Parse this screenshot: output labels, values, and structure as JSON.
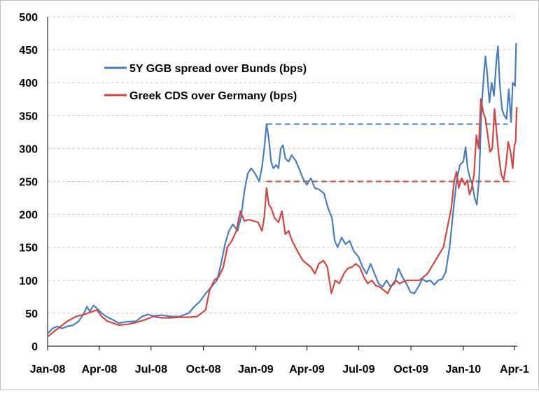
{
  "chart_data": {
    "type": "line",
    "title": "",
    "xlabel": "",
    "ylabel": "",
    "ylim": [
      0,
      500
    ],
    "yticks": [
      "0",
      "50",
      "100",
      "150",
      "200",
      "250",
      "300",
      "350",
      "400",
      "450",
      "500"
    ],
    "xticks": [
      "Jan-08",
      "Apr-08",
      "Jul-08",
      "Oct-08",
      "Jan-09",
      "Apr-09",
      "Jul-09",
      "Oct-09",
      "Jan-10",
      "Apr-1"
    ],
    "grid": "horizontal dashed",
    "legend_position": "top-left",
    "reference_lines": [
      {
        "series": "5Y GGB spread over Bunds (bps)",
        "value": 337,
        "from": "2009-01-20",
        "to": "2010-03-20",
        "style": "dashed",
        "color": "#4A7EBB"
      },
      {
        "series": "Greek CDS over Germany (bps)",
        "value": 250,
        "from": "2009-01-20",
        "to": "2010-03-28",
        "style": "dashed",
        "color": "#D04545"
      }
    ],
    "series": [
      {
        "name": "5Y GGB spread over Bunds (bps)",
        "color": "#4A7EBB",
        "points": [
          [
            "2008-01-02",
            20
          ],
          [
            "2008-01-10",
            27
          ],
          [
            "2008-01-18",
            30
          ],
          [
            "2008-01-26",
            27
          ],
          [
            "2008-02-05",
            30
          ],
          [
            "2008-02-15",
            32
          ],
          [
            "2008-02-25",
            38
          ],
          [
            "2008-03-05",
            50
          ],
          [
            "2008-03-10",
            60
          ],
          [
            "2008-03-15",
            53
          ],
          [
            "2008-03-22",
            62
          ],
          [
            "2008-03-28",
            57
          ],
          [
            "2008-04-05",
            50
          ],
          [
            "2008-04-15",
            44
          ],
          [
            "2008-04-25",
            40
          ],
          [
            "2008-05-05",
            35
          ],
          [
            "2008-05-20",
            37
          ],
          [
            "2008-06-05",
            38
          ],
          [
            "2008-06-15",
            45
          ],
          [
            "2008-06-25",
            48
          ],
          [
            "2008-07-05",
            46
          ],
          [
            "2008-07-20",
            47
          ],
          [
            "2008-08-05",
            45
          ],
          [
            "2008-08-20",
            45
          ],
          [
            "2008-09-05",
            50
          ],
          [
            "2008-09-15",
            60
          ],
          [
            "2008-09-25",
            68
          ],
          [
            "2008-10-05",
            80
          ],
          [
            "2008-10-15",
            90
          ],
          [
            "2008-10-25",
            100
          ],
          [
            "2008-11-01",
            125
          ],
          [
            "2008-11-08",
            155
          ],
          [
            "2008-11-15",
            175
          ],
          [
            "2008-11-22",
            185
          ],
          [
            "2008-11-30",
            175
          ],
          [
            "2008-12-06",
            195
          ],
          [
            "2008-12-12",
            235
          ],
          [
            "2008-12-18",
            262
          ],
          [
            "2008-12-24",
            270
          ],
          [
            "2008-12-31",
            262
          ],
          [
            "2009-01-07",
            250
          ],
          [
            "2009-01-12",
            272
          ],
          [
            "2009-01-16",
            300
          ],
          [
            "2009-01-20",
            337
          ],
          [
            "2009-01-24",
            315
          ],
          [
            "2009-01-28",
            280
          ],
          [
            "2009-02-01",
            270
          ],
          [
            "2009-02-06",
            275
          ],
          [
            "2009-02-10",
            270
          ],
          [
            "2009-02-14",
            300
          ],
          [
            "2009-02-18",
            305
          ],
          [
            "2009-02-22",
            285
          ],
          [
            "2009-02-28",
            280
          ],
          [
            "2009-03-05",
            290
          ],
          [
            "2009-03-12",
            282
          ],
          [
            "2009-03-18",
            270
          ],
          [
            "2009-03-25",
            255
          ],
          [
            "2009-04-01",
            245
          ],
          [
            "2009-04-08",
            255
          ],
          [
            "2009-04-15",
            240
          ],
          [
            "2009-04-22",
            238
          ],
          [
            "2009-05-01",
            232
          ],
          [
            "2009-05-08",
            210
          ],
          [
            "2009-05-15",
            195
          ],
          [
            "2009-05-20",
            160
          ],
          [
            "2009-05-25",
            150
          ],
          [
            "2009-06-01",
            165
          ],
          [
            "2009-06-08",
            155
          ],
          [
            "2009-06-15",
            160
          ],
          [
            "2009-06-22",
            145
          ],
          [
            "2009-07-01",
            135
          ],
          [
            "2009-07-08",
            120
          ],
          [
            "2009-07-15",
            110
          ],
          [
            "2009-07-22",
            125
          ],
          [
            "2009-07-29",
            110
          ],
          [
            "2009-08-05",
            95
          ],
          [
            "2009-08-12",
            90
          ],
          [
            "2009-08-19",
            100
          ],
          [
            "2009-08-26",
            90
          ],
          [
            "2009-09-02",
            95
          ],
          [
            "2009-09-09",
            118
          ],
          [
            "2009-09-16",
            105
          ],
          [
            "2009-09-23",
            95
          ],
          [
            "2009-09-30",
            82
          ],
          [
            "2009-10-07",
            80
          ],
          [
            "2009-10-14",
            90
          ],
          [
            "2009-10-21",
            102
          ],
          [
            "2009-10-28",
            98
          ],
          [
            "2009-11-04",
            100
          ],
          [
            "2009-11-11",
            93
          ],
          [
            "2009-11-18",
            100
          ],
          [
            "2009-11-25",
            102
          ],
          [
            "2009-12-01",
            112
          ],
          [
            "2009-12-08",
            150
          ],
          [
            "2009-12-15",
            210
          ],
          [
            "2009-12-20",
            250
          ],
          [
            "2009-12-26",
            275
          ],
          [
            "2010-01-01",
            280
          ],
          [
            "2010-01-05",
            302
          ],
          [
            "2010-01-09",
            268
          ],
          [
            "2010-01-13",
            255
          ],
          [
            "2010-01-17",
            245
          ],
          [
            "2010-01-21",
            225
          ],
          [
            "2010-01-25",
            215
          ],
          [
            "2010-01-29",
            258
          ],
          [
            "2010-02-02",
            360
          ],
          [
            "2010-02-06",
            410
          ],
          [
            "2010-02-09",
            440
          ],
          [
            "2010-02-12",
            415
          ],
          [
            "2010-02-16",
            370
          ],
          [
            "2010-02-20",
            400
          ],
          [
            "2010-02-24",
            380
          ],
          [
            "2010-02-28",
            430
          ],
          [
            "2010-03-03",
            455
          ],
          [
            "2010-03-06",
            400
          ],
          [
            "2010-03-10",
            360
          ],
          [
            "2010-03-14",
            350
          ],
          [
            "2010-03-18",
            345
          ],
          [
            "2010-03-22",
            390
          ],
          [
            "2010-03-26",
            340
          ],
          [
            "2010-03-29",
            400
          ],
          [
            "2010-04-02",
            395
          ],
          [
            "2010-04-04",
            460
          ]
        ]
      },
      {
        "name": "Greek CDS over Germany (bps)",
        "color": "#D04545",
        "points": [
          [
            "2008-01-02",
            15
          ],
          [
            "2008-01-12",
            22
          ],
          [
            "2008-01-24",
            30
          ],
          [
            "2008-02-05",
            38
          ],
          [
            "2008-02-20",
            45
          ],
          [
            "2008-03-05",
            48
          ],
          [
            "2008-03-18",
            52
          ],
          [
            "2008-03-28",
            55
          ],
          [
            "2008-04-05",
            45
          ],
          [
            "2008-04-15",
            38
          ],
          [
            "2008-04-25",
            35
          ],
          [
            "2008-05-05",
            32
          ],
          [
            "2008-05-20",
            33
          ],
          [
            "2008-06-05",
            36
          ],
          [
            "2008-06-20",
            40
          ],
          [
            "2008-07-05",
            45
          ],
          [
            "2008-07-20",
            43
          ],
          [
            "2008-08-05",
            43
          ],
          [
            "2008-08-20",
            44
          ],
          [
            "2008-09-05",
            44
          ],
          [
            "2008-09-20",
            45
          ],
          [
            "2008-10-05",
            55
          ],
          [
            "2008-10-12",
            85
          ],
          [
            "2008-10-20",
            100
          ],
          [
            "2008-10-28",
            105
          ],
          [
            "2008-11-05",
            120
          ],
          [
            "2008-11-12",
            150
          ],
          [
            "2008-11-20",
            160
          ],
          [
            "2008-11-28",
            175
          ],
          [
            "2008-12-05",
            205
          ],
          [
            "2008-12-12",
            190
          ],
          [
            "2008-12-20",
            192
          ],
          [
            "2008-12-28",
            190
          ],
          [
            "2009-01-05",
            188
          ],
          [
            "2009-01-12",
            175
          ],
          [
            "2009-01-16",
            195
          ],
          [
            "2009-01-20",
            240
          ],
          [
            "2009-01-24",
            215
          ],
          [
            "2009-01-28",
            210
          ],
          [
            "2009-02-03",
            195
          ],
          [
            "2009-02-10",
            188
          ],
          [
            "2009-02-16",
            205
          ],
          [
            "2009-02-22",
            170
          ],
          [
            "2009-02-28",
            175
          ],
          [
            "2009-03-06",
            160
          ],
          [
            "2009-03-12",
            150
          ],
          [
            "2009-03-18",
            140
          ],
          [
            "2009-03-25",
            130
          ],
          [
            "2009-04-01",
            125
          ],
          [
            "2009-04-08",
            120
          ],
          [
            "2009-04-15",
            110
          ],
          [
            "2009-04-22",
            125
          ],
          [
            "2009-04-30",
            130
          ],
          [
            "2009-05-07",
            120
          ],
          [
            "2009-05-14",
            80
          ],
          [
            "2009-05-21",
            100
          ],
          [
            "2009-05-28",
            95
          ],
          [
            "2009-06-05",
            110
          ],
          [
            "2009-06-12",
            118
          ],
          [
            "2009-06-19",
            120
          ],
          [
            "2009-06-26",
            125
          ],
          [
            "2009-07-03",
            120
          ],
          [
            "2009-07-10",
            105
          ],
          [
            "2009-07-17",
            95
          ],
          [
            "2009-07-24",
            100
          ],
          [
            "2009-07-31",
            92
          ],
          [
            "2009-08-07",
            90
          ],
          [
            "2009-08-14",
            85
          ],
          [
            "2009-08-21",
            80
          ],
          [
            "2009-08-28",
            92
          ],
          [
            "2009-09-04",
            100
          ],
          [
            "2009-09-11",
            95
          ],
          [
            "2009-09-18",
            98
          ],
          [
            "2009-09-25",
            100
          ],
          [
            "2009-10-02",
            100
          ],
          [
            "2009-10-09",
            100
          ],
          [
            "2009-10-16",
            100
          ],
          [
            "2009-10-23",
            105
          ],
          [
            "2009-10-30",
            110
          ],
          [
            "2009-11-06",
            120
          ],
          [
            "2009-11-13",
            130
          ],
          [
            "2009-11-20",
            140
          ],
          [
            "2009-11-27",
            150
          ],
          [
            "2009-12-04",
            180
          ],
          [
            "2009-12-11",
            210
          ],
          [
            "2009-12-16",
            250
          ],
          [
            "2009-12-20",
            265
          ],
          [
            "2009-12-24",
            240
          ],
          [
            "2009-12-29",
            255
          ],
          [
            "2010-01-04",
            245
          ],
          [
            "2010-01-08",
            252
          ],
          [
            "2010-01-12",
            230
          ],
          [
            "2010-01-16",
            240
          ],
          [
            "2010-01-20",
            262
          ],
          [
            "2010-01-24",
            320
          ],
          [
            "2010-01-28",
            300
          ],
          [
            "2010-02-01",
            375
          ],
          [
            "2010-02-05",
            355
          ],
          [
            "2010-02-09",
            345
          ],
          [
            "2010-02-13",
            320
          ],
          [
            "2010-02-17",
            295
          ],
          [
            "2010-02-21",
            300
          ],
          [
            "2010-02-25",
            360
          ],
          [
            "2010-03-01",
            320
          ],
          [
            "2010-03-05",
            285
          ],
          [
            "2010-03-09",
            260
          ],
          [
            "2010-03-13",
            252
          ],
          [
            "2010-03-17",
            275
          ],
          [
            "2010-03-21",
            310
          ],
          [
            "2010-03-25",
            295
          ],
          [
            "2010-03-29",
            270
          ],
          [
            "2010-04-01",
            305
          ],
          [
            "2010-04-03",
            310
          ],
          [
            "2010-04-05",
            363
          ]
        ]
      }
    ]
  }
}
